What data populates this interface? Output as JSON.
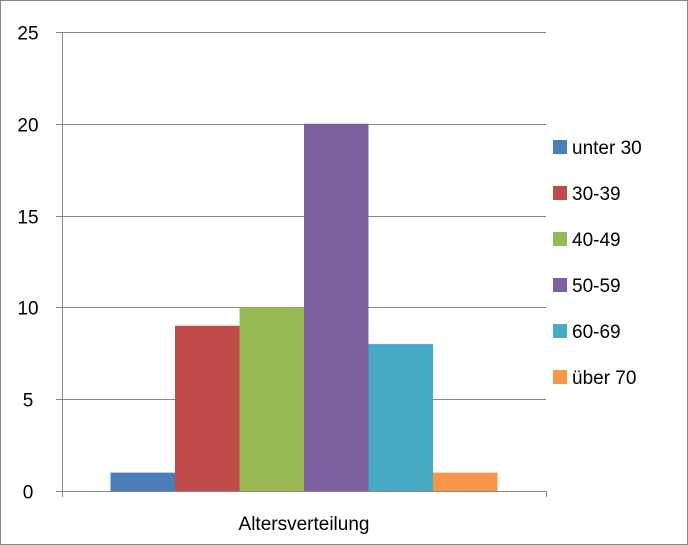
{
  "chart_data": {
    "type": "bar",
    "categories": [
      "Altersverteilung"
    ],
    "series": [
      {
        "name": "unter 30",
        "values": [
          1
        ],
        "color": "#4A7EBB"
      },
      {
        "name": "30-39",
        "values": [
          9
        ],
        "color": "#BE4B48"
      },
      {
        "name": "40-49",
        "values": [
          10
        ],
        "color": "#98B954"
      },
      {
        "name": "50-59",
        "values": [
          20
        ],
        "color": "#7D60A0"
      },
      {
        "name": "60-69",
        "values": [
          8
        ],
        "color": "#46AAC5"
      },
      {
        "name": "über 70",
        "values": [
          1
        ],
        "color": "#F79646"
      }
    ],
    "yticks": [
      "0",
      "5",
      "10",
      "15",
      "20",
      "25"
    ],
    "ylim": [
      0,
      25
    ],
    "grid": true,
    "legend": "right",
    "axis_color": "#868686"
  }
}
